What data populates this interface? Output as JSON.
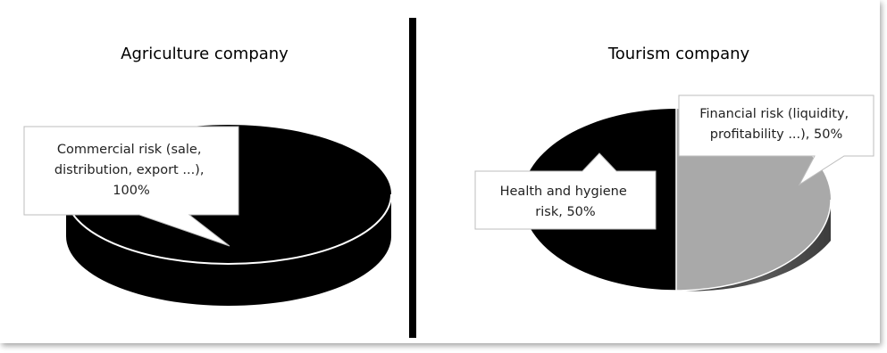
{
  "chart_data": [
    {
      "type": "pie",
      "title": "Agriculture company",
      "categories": [
        "Commercial risk (sale, distribution, export ...)"
      ],
      "values": [
        100
      ],
      "labels": [
        {
          "lines": [
            "Commercial risk (sale,",
            "distribution, export ...),",
            "100%"
          ]
        }
      ],
      "colors": [
        "#000000"
      ],
      "style": "3d"
    },
    {
      "type": "pie",
      "title": "Tourism company",
      "categories": [
        "Health and hygiene risk",
        "Financial risk (liquidity, profitability ...)"
      ],
      "values": [
        50,
        50
      ],
      "labels": [
        {
          "lines": [
            "Health and hygiene",
            "risk, 50%"
          ]
        },
        {
          "lines": [
            "Financial risk (liquidity,",
            "profitability ...), 50%"
          ]
        }
      ],
      "colors": [
        "#000000",
        "#a9a9a9"
      ],
      "style": "3d"
    }
  ]
}
